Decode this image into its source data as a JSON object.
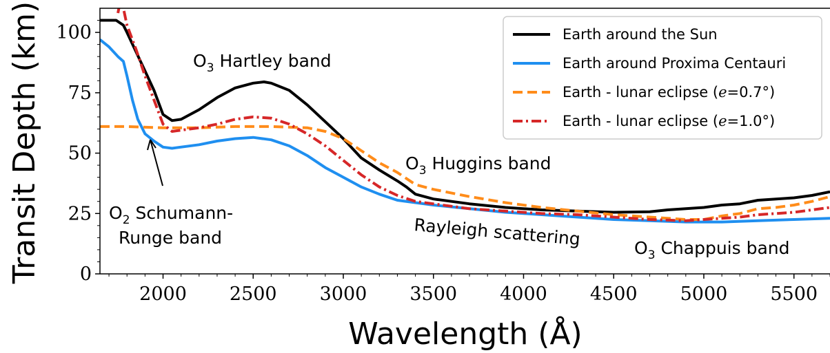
{
  "chart_data": {
    "type": "line",
    "xlabel": "Wavelength (Å)",
    "ylabel": "Transit Depth (km)",
    "xlim": [
      1650,
      5700
    ],
    "ylim": [
      0,
      110
    ],
    "xticks": [
      2000,
      2500,
      3000,
      3500,
      4000,
      4500,
      5000,
      5500
    ],
    "yticks": [
      0,
      25,
      50,
      75,
      100
    ],
    "grid": false,
    "legend_position": "top-right",
    "series": [
      {
        "name": "Earth around the Sun",
        "color": "#000000",
        "style": "solid",
        "x": [
          1650,
          1740,
          1760,
          1780,
          1800,
          1850,
          1900,
          1950,
          2000,
          2050,
          2100,
          2200,
          2300,
          2400,
          2500,
          2560,
          2600,
          2700,
          2800,
          2900,
          3000,
          3100,
          3200,
          3300,
          3350,
          3400,
          3500,
          3700,
          3900,
          4100,
          4300,
          4500,
          4700,
          4800,
          4900,
          5000,
          5100,
          5200,
          5300,
          5400,
          5500,
          5600,
          5700
        ],
        "y": [
          105,
          105,
          104,
          103,
          100,
          92,
          84,
          76,
          66,
          63.5,
          64,
          68,
          73,
          77,
          79,
          79.5,
          79,
          76,
          70,
          63,
          56,
          48,
          43,
          38.5,
          36,
          33,
          31,
          29,
          27.5,
          26.5,
          26,
          25.5,
          25.7,
          26.5,
          27,
          27.5,
          28.5,
          29,
          30.5,
          31,
          31.5,
          32.5,
          34
        ]
      },
      {
        "name": "Earth around Proxima Centauri",
        "color": "#1f8ff0",
        "style": "solid",
        "x": [
          1650,
          1700,
          1750,
          1780,
          1800,
          1830,
          1860,
          1900,
          1950,
          2000,
          2050,
          2200,
          2300,
          2400,
          2500,
          2600,
          2700,
          2800,
          2900,
          3000,
          3100,
          3200,
          3300,
          3400,
          3500,
          3700,
          3900,
          4100,
          4300,
          4500,
          4700,
          4900,
          5100,
          5300,
          5500,
          5700
        ],
        "y": [
          97,
          94,
          90,
          88,
          82,
          72,
          64,
          58,
          55,
          52.5,
          52,
          53.5,
          55,
          56,
          56.5,
          55.5,
          53,
          49,
          44,
          40,
          36,
          33,
          30.5,
          29.5,
          28.5,
          27,
          25.5,
          24.5,
          23.5,
          22.5,
          22,
          21.5,
          21.5,
          22,
          22.5,
          23
        ]
      },
      {
        "name": "Earth - lunar eclipse (e=0.7°)",
        "color": "#ff8c1a",
        "style": "dashed",
        "x": [
          1650,
          1800,
          2000,
          2200,
          2400,
          2600,
          2800,
          2900,
          3000,
          3100,
          3200,
          3300,
          3400,
          3500,
          3700,
          3900,
          4100,
          4300,
          4500,
          4700,
          4900,
          5000,
          5100,
          5200,
          5300,
          5400,
          5500,
          5600,
          5700
        ],
        "y": [
          61,
          61,
          60.5,
          60.5,
          61,
          61,
          60.5,
          59,
          56,
          51,
          46,
          42,
          37,
          35,
          32,
          29.5,
          27.5,
          26,
          24.5,
          23.5,
          22.5,
          22.5,
          24,
          25,
          27,
          27.5,
          28.5,
          30,
          32
        ]
      },
      {
        "name": "Earth - lunar eclipse (e=1.0°)",
        "color": "#d62728",
        "style": "dashdot",
        "x": [
          1750,
          1760,
          1780,
          1800,
          1850,
          1900,
          1950,
          2000,
          2050,
          2100,
          2200,
          2300,
          2400,
          2500,
          2600,
          2700,
          2800,
          2900,
          3000,
          3100,
          3200,
          3300,
          3400,
          3500,
          3700,
          3900,
          4100,
          4300,
          4500,
          4700,
          4900,
          5000,
          5100,
          5200,
          5300,
          5400,
          5500,
          5600,
          5700
        ],
        "y": [
          108,
          112,
          110,
          103,
          93,
          82,
          72,
          62,
          59,
          59.5,
          60.5,
          62,
          64,
          65,
          64.5,
          62,
          58,
          53,
          47,
          41,
          36,
          32.5,
          30,
          29,
          27,
          26,
          25,
          24.5,
          23.5,
          22.5,
          22,
          22.5,
          23,
          23.5,
          24.5,
          25,
          25.5,
          26.5,
          27.5
        ]
      }
    ],
    "annotations": [
      {
        "prefix": "O",
        "sub": "3",
        "text": " Hartley band"
      },
      {
        "prefix": "O",
        "sub": "3",
        "text": " Huggins band"
      },
      {
        "prefix": "",
        "sub": "",
        "text": "Rayleigh scattering"
      },
      {
        "prefix": "O",
        "sub": "3",
        "text": " Chappuis band"
      },
      {
        "prefix": "O",
        "sub": "2",
        "text": " Schumann-"
      },
      {
        "prefix": "",
        "sub": "",
        "text": "Runge band"
      }
    ]
  }
}
